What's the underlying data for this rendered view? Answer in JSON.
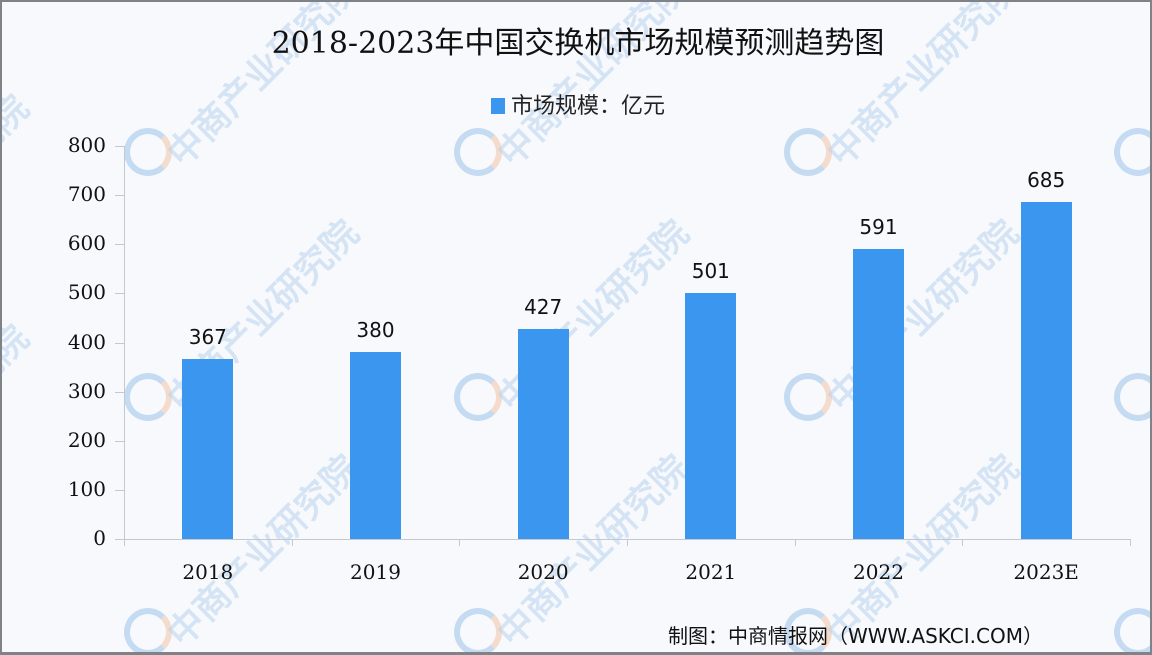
{
  "chart_data": {
    "type": "bar",
    "title": "2018-2023年中国交换机市场规模预测趋势图",
    "legend": [
      "市场规模：亿元"
    ],
    "legend_position": "top",
    "categories": [
      "2018",
      "2019",
      "2020",
      "2021",
      "2022",
      "2023E"
    ],
    "series": [
      {
        "name": "市场规模：亿元",
        "values": [
          367,
          380,
          427,
          501,
          591,
          685
        ],
        "color": "#3a96ee"
      }
    ],
    "xlabel": "",
    "ylabel": "",
    "ylim": [
      0,
      800
    ],
    "yticks": [
      0,
      100,
      200,
      300,
      400,
      500,
      600,
      700,
      800
    ],
    "grid": false,
    "data_labels": true
  },
  "title": "2018-2023年中国交换机市场规模预测趋势图",
  "legend_label": "市场规模：亿元",
  "source": "制图：中商情报网（WWW.ASKCI.COM）",
  "watermark": "中商产业研究院",
  "colors": {
    "bar": "#3a96ee",
    "watermark": "#b9d3ee",
    "background": "#f8f9fc"
  }
}
